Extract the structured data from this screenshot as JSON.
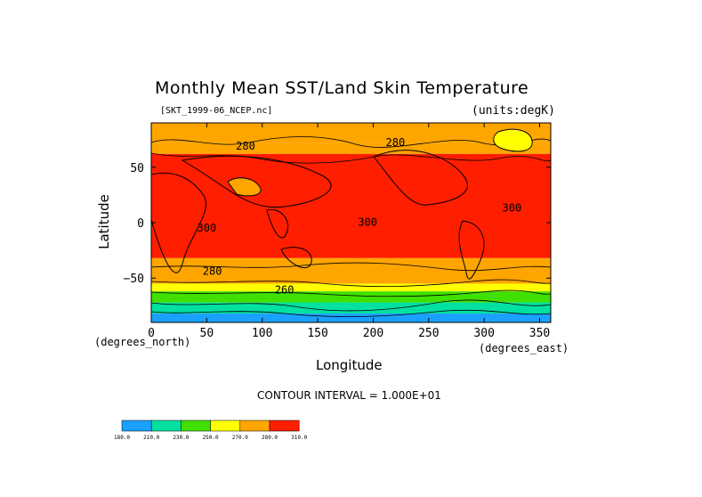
{
  "chart_data": {
    "type": "heatmap",
    "title": "Monthly Mean SST/Land Skin Temperature",
    "dataset_label": "[SKT_1999-06_NCEP.nc]",
    "units_label": "(units:degK)",
    "xlabel": "Longitude",
    "ylabel": "Latitude",
    "x_unit_label": "(degrees_east)",
    "y_unit_label": "(degrees_north)",
    "xlim": [
      0,
      360
    ],
    "ylim": [
      -90,
      90
    ],
    "x_ticks": [
      0,
      50,
      100,
      150,
      200,
      250,
      300,
      350
    ],
    "y_ticks": [
      50,
      0,
      -50
    ],
    "contour_interval_text": "CONTOUR INTERVAL = 1.000E+01",
    "colorbar": {
      "levels": [
        "180.0",
        "210.0",
        "230.0",
        "250.0",
        "270.0",
        "280.0",
        "310.0"
      ],
      "colors": [
        "#1aa0ff",
        "#00e0a0",
        "#40e000",
        "#ffff00",
        "#ffa500",
        "#ff1e00"
      ]
    },
    "zones": [
      {
        "lat_top": 90,
        "lat_bottom": 72,
        "color": "#ffa500",
        "min_c": "270",
        "max_c": "280"
      },
      {
        "lat_top": 72,
        "lat_bottom": 62,
        "color": "#ffa500",
        "min_c": "270",
        "max_c": "280"
      },
      {
        "lat_top": 62,
        "lat_bottom": -32,
        "color": "#ff1e00",
        "min_c": "280",
        "max_c": "310"
      },
      {
        "lat_top": -32,
        "lat_bottom": -55,
        "color": "#ffa500",
        "min_c": "270",
        "max_c": "280"
      },
      {
        "lat_top": -55,
        "lat_bottom": -62,
        "color": "#ffff00",
        "min_c": "250",
        "max_c": "270"
      },
      {
        "lat_top": -62,
        "lat_bottom": -72,
        "color": "#40e000",
        "min_c": "230",
        "max_c": "250"
      },
      {
        "lat_top": -72,
        "lat_bottom": -82,
        "color": "#00e0a0",
        "min_c": "210",
        "max_c": "230"
      },
      {
        "lat_top": -82,
        "lat_bottom": -90,
        "color": "#1aa0ff",
        "min_c": "180",
        "max_c": "210"
      }
    ],
    "contour_labels": [
      {
        "text": "280",
        "lon": 85,
        "lat": 66
      },
      {
        "text": "280",
        "lon": 220,
        "lat": 69
      },
      {
        "text": "300",
        "lon": 50,
        "lat": -8
      },
      {
        "text": "300",
        "lon": 195,
        "lat": -3
      },
      {
        "text": "300",
        "lon": 325,
        "lat": 10
      },
      {
        "text": "280",
        "lon": 55,
        "lat": -47
      },
      {
        "text": "260",
        "lon": 120,
        "lat": -64
      }
    ],
    "grid": false,
    "colorscale": "temperature (degK)"
  }
}
